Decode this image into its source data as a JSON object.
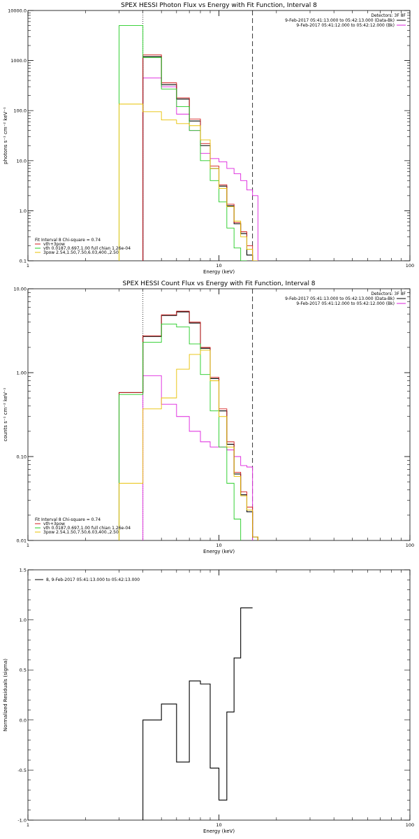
{
  "colors": {
    "data": "#000000",
    "total": "#d21b1b",
    "vth": "#22cc22",
    "pow": "#e8c000",
    "bg": "#dd22dd",
    "dashed": "#000000"
  },
  "chart_data": [
    {
      "type": "line",
      "title": "SPEX HESSI Photon Flux vs Energy with Fit Function, Interval 8",
      "xlabel": "Energy (keV)",
      "ylabel": "photons s⁻¹ cm⁻² keV⁻¹",
      "xscale": "log",
      "yscale": "log",
      "xlim": [
        1,
        100
      ],
      "ylim": [
        0.1,
        10000
      ],
      "xticks": [
        {
          "v": 1,
          "l": "1"
        },
        {
          "v": 10,
          "l": "10"
        },
        {
          "v": 100,
          "l": "100"
        }
      ],
      "yticks": [
        {
          "v": 0.1,
          "l": "0.1"
        },
        {
          "v": 1,
          "l": "1.0"
        },
        {
          "v": 10,
          "l": "10.0"
        },
        {
          "v": 100,
          "l": "100.0"
        },
        {
          "v": 1000,
          "l": "1000.0"
        },
        {
          "v": 10000,
          "l": "10000.0"
        }
      ],
      "legend_top": {
        "placement": "top-right",
        "header": "Detectors: 3F 8F",
        "lines": [
          {
            "text": "9-Feb-2017 05:41:13.000 to 05:42:13.000 (Data-Bk)",
            "color": "#000000"
          },
          {
            "text": "9-Feb-2017 05:41:12.000 to 05:42:12.000 (Bk)",
            "color": "#dd22dd"
          }
        ]
      },
      "legend_bottom": {
        "placement": "bottom-left",
        "header": "Fit Interval 8   Chi-square = 0.74",
        "lines": [
          {
            "text": "vth+3pow",
            "color": "#d21b1b"
          },
          {
            "text": "vth 0.0187,0.697,1.00  full chian 1.26e-04",
            "color": "#22cc22"
          },
          {
            "text": "3pow 2.54,1.50,7.50,6.03,400.,2.50",
            "color": "#e8c000"
          }
        ]
      },
      "markers": {
        "dotted": 4.0,
        "dashed": 15.0
      },
      "edges": [
        3.0,
        4.0,
        5.0,
        6.0,
        7.0,
        8.0,
        9.0,
        10.0,
        11.0,
        12.0,
        13.0,
        14.0,
        15.0,
        16.0
      ],
      "series": [
        {
          "key": "bg",
          "values": [
            null,
            450,
            300,
            85,
            40,
            14,
            11,
            9.5,
            7,
            5.5,
            4,
            2.6,
            2.0
          ]
        },
        {
          "key": "data",
          "values": [
            null,
            1200,
            330,
            170,
            62,
            20,
            7.0,
            3.1,
            1.25,
            0.55,
            0.35,
            0.13,
            null
          ]
        },
        {
          "key": "total",
          "values": [
            null,
            1300,
            360,
            180,
            68,
            22,
            7.8,
            3.3,
            1.35,
            0.58,
            0.38,
            0.2,
            null
          ]
        },
        {
          "key": "vth",
          "values": [
            5000,
            1150,
            270,
            120,
            40,
            10,
            4.0,
            1.5,
            0.45,
            0.18,
            0.1,
            null,
            null
          ]
        },
        {
          "key": "pow",
          "values": [
            135,
            95,
            65,
            55,
            50,
            26,
            7.0,
            2.8,
            1.2,
            0.62,
            0.3,
            0.17,
            0.1
          ]
        }
      ]
    },
    {
      "type": "line",
      "title": "SPEX HESSI Count Flux vs Energy with Fit Function, Interval 8",
      "xlabel": "Energy (keV)",
      "ylabel": "counts s⁻¹ cm⁻² keV⁻¹",
      "xscale": "log",
      "yscale": "log",
      "xlim": [
        1,
        100
      ],
      "ylim": [
        0.01,
        10
      ],
      "xticks": [
        {
          "v": 1,
          "l": "1"
        },
        {
          "v": 10,
          "l": "10"
        },
        {
          "v": 100,
          "l": "100"
        }
      ],
      "yticks": [
        {
          "v": 0.01,
          "l": "0.01"
        },
        {
          "v": 0.1,
          "l": "0.10"
        },
        {
          "v": 1,
          "l": "1.00"
        },
        {
          "v": 10,
          "l": "10.00"
        }
      ],
      "legend_top": {
        "placement": "top-right",
        "header": "Detectors: 3F 8F",
        "lines": [
          {
            "text": "9-Feb-2017 05:41:13.000 to 05:42:13.000 (Data-Bk)",
            "color": "#000000"
          },
          {
            "text": "9-Feb-2017 05:41:12.000 to 05:42:12.000 (Bk)",
            "color": "#dd22dd"
          }
        ]
      },
      "legend_bottom": {
        "placement": "bottom-left",
        "header": "Fit Interval 8   Chi-square = 0.74",
        "lines": [
          {
            "text": "vth+3pow",
            "color": "#d21b1b"
          },
          {
            "text": "vth 0.0187,0.697,1.00  full chian 1.26e-04",
            "color": "#22cc22"
          },
          {
            "text": "3pow 2.54,1.50,7.50,6.03,400.,2.50",
            "color": "#e8c000"
          }
        ]
      },
      "markers": {
        "dotted": 4.0,
        "dashed": 15.0
      },
      "edges": [
        3.0,
        4.0,
        5.0,
        6.0,
        7.0,
        8.0,
        9.0,
        10.0,
        11.0,
        12.0,
        13.0,
        14.0,
        15.0,
        16.0
      ],
      "series": [
        {
          "key": "bg",
          "values": [
            null,
            0.92,
            0.42,
            0.3,
            0.2,
            0.15,
            0.13,
            0.13,
            0.12,
            0.1,
            0.078,
            0.075,
            null
          ]
        },
        {
          "key": "data",
          "values": [
            0.58,
            2.7,
            4.8,
            5.3,
            3.9,
            1.95,
            0.85,
            0.35,
            0.14,
            0.062,
            0.035,
            0.022,
            0.011
          ]
        },
        {
          "key": "total",
          "values": [
            0.58,
            2.75,
            4.9,
            5.4,
            4.0,
            2.0,
            0.88,
            0.37,
            0.15,
            0.065,
            0.038,
            0.025,
            0.011
          ]
        },
        {
          "key": "vth",
          "values": [
            0.55,
            2.3,
            3.8,
            3.5,
            2.2,
            0.95,
            0.35,
            0.13,
            0.048,
            0.018,
            null,
            null,
            null
          ]
        },
        {
          "key": "pow",
          "values": [
            0.048,
            0.37,
            0.5,
            1.1,
            1.65,
            1.85,
            0.8,
            0.3,
            0.13,
            0.058,
            0.034,
            0.023,
            0.011
          ]
        }
      ]
    },
    {
      "type": "line",
      "title": "",
      "xlabel": "Energy (keV)",
      "ylabel": "Normalized Residuals (sigma)",
      "xscale": "log",
      "yscale": "linear",
      "xlim": [
        1,
        100
      ],
      "ylim": [
        -1.0,
        1.5
      ],
      "xticks": [
        {
          "v": 1,
          "l": "1"
        },
        {
          "v": 10,
          "l": "10"
        },
        {
          "v": 100,
          "l": "100"
        }
      ],
      "yticks": [
        {
          "v": -1.0,
          "l": "-1.0"
        },
        {
          "v": -0.5,
          "l": "-0.5"
        },
        {
          "v": 0.0,
          "l": "0.0"
        },
        {
          "v": 0.5,
          "l": "0.5"
        },
        {
          "v": 1.0,
          "l": "1.0"
        },
        {
          "v": 1.5,
          "l": "1.5"
        }
      ],
      "legend_top": {
        "placement": "top-left",
        "header": "",
        "lines": [
          {
            "text": "8,  9-Feb-2017 05:41:13.000 to 05:42:13.000",
            "color": "#000000"
          }
        ]
      },
      "edges": [
        4.0,
        5.0,
        6.0,
        7.0,
        8.0,
        9.0,
        10.0,
        11.0,
        12.0,
        13.0,
        14.0,
        15.0
      ],
      "series": [
        {
          "key": "data",
          "values": [
            0.0,
            0.16,
            -0.42,
            0.39,
            0.36,
            -0.48,
            -0.8,
            0.08,
            0.62,
            1.12,
            1.12
          ],
          "start_floor": true
        }
      ]
    }
  ]
}
